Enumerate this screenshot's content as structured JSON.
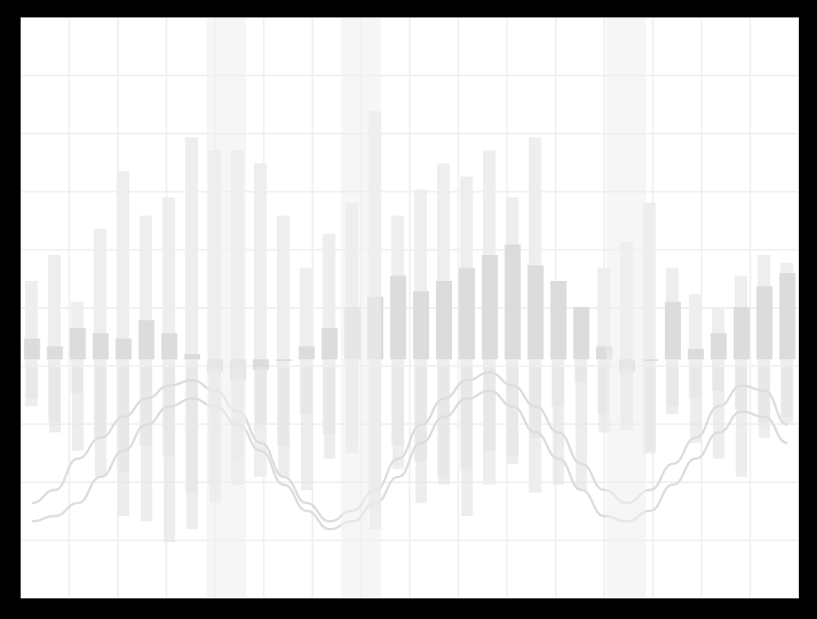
{
  "colors": {
    "frame": "#000000",
    "background": "#ffffff",
    "grid": "#efefef",
    "bars_dark": "#dcdcdc",
    "bars_mid": "#e6e6e6",
    "bars_light": "#eeeeee",
    "curves": "#dddddd"
  },
  "chart_data": {
    "type": "bar",
    "grid": true,
    "legend": "none",
    "title": "",
    "xlabel": "",
    "ylabel": "",
    "ylim": [
      -1,
      1
    ],
    "x": [
      0,
      1,
      2,
      3,
      4,
      5,
      6,
      7,
      8,
      9,
      10,
      11,
      12,
      13,
      14,
      15,
      16,
      17,
      18,
      19,
      20,
      21,
      22,
      23,
      24,
      25,
      26,
      27,
      28,
      29,
      30,
      31,
      32,
      33
    ],
    "series": [
      {
        "values": [
          0.08,
          0.05,
          0.12,
          0.1,
          0.08,
          0.15,
          0.1,
          0.02,
          -0.05,
          -0.08,
          -0.04,
          0.0,
          0.05,
          0.12,
          0.2,
          0.24,
          0.32,
          0.26,
          0.3,
          0.35,
          0.4,
          0.44,
          0.36,
          0.3,
          0.2,
          0.05,
          -0.05,
          0.0,
          0.22,
          0.04,
          0.1,
          0.2,
          0.28,
          0.33
        ]
      },
      {
        "values": [
          0.3,
          0.4,
          0.22,
          0.5,
          0.72,
          0.55,
          0.62,
          0.85,
          0.8,
          0.8,
          0.75,
          0.55,
          0.35,
          0.48,
          0.6,
          0.95,
          0.55,
          0.65,
          0.75,
          0.7,
          0.8,
          0.62,
          0.85,
          0.3,
          0.15,
          0.35,
          0.45,
          0.6,
          0.35,
          0.25,
          0.2,
          0.32,
          0.4,
          0.37
        ]
      },
      {
        "values": [
          -0.15,
          -0.28,
          -0.35,
          -0.45,
          -0.6,
          -0.62,
          -0.7,
          -0.65,
          -0.55,
          -0.38,
          -0.25,
          -0.45,
          -0.5,
          -0.38,
          -0.3,
          -0.65,
          -0.42,
          -0.55,
          -0.48,
          -0.6,
          -0.35,
          -0.4,
          -0.3,
          -0.48,
          -0.5,
          -0.28,
          -0.25,
          -0.35,
          -0.18,
          -0.32,
          -0.38,
          -0.45,
          -0.3,
          -0.25
        ]
      },
      {
        "values": [
          -0.55,
          -0.5,
          -0.38,
          -0.3,
          -0.22,
          -0.15,
          -0.1,
          -0.08,
          -0.12,
          -0.2,
          -0.32,
          -0.45,
          -0.55,
          -0.62,
          -0.58,
          -0.5,
          -0.38,
          -0.25,
          -0.15,
          -0.08,
          -0.05,
          -0.1,
          -0.18,
          -0.28,
          -0.4,
          -0.5,
          -0.55,
          -0.5,
          -0.4,
          -0.3,
          -0.18,
          -0.1,
          -0.12,
          -0.25
        ]
      },
      {
        "values": [
          -0.62,
          -0.6,
          -0.55,
          -0.45,
          -0.35,
          -0.25,
          -0.18,
          -0.15,
          -0.18,
          -0.25,
          -0.35,
          -0.48,
          -0.58,
          -0.65,
          -0.62,
          -0.55,
          -0.45,
          -0.32,
          -0.22,
          -0.15,
          -0.12,
          -0.18,
          -0.28,
          -0.38,
          -0.5,
          -0.6,
          -0.62,
          -0.58,
          -0.48,
          -0.38,
          -0.28,
          -0.2,
          -0.22,
          -0.32
        ]
      }
    ]
  }
}
